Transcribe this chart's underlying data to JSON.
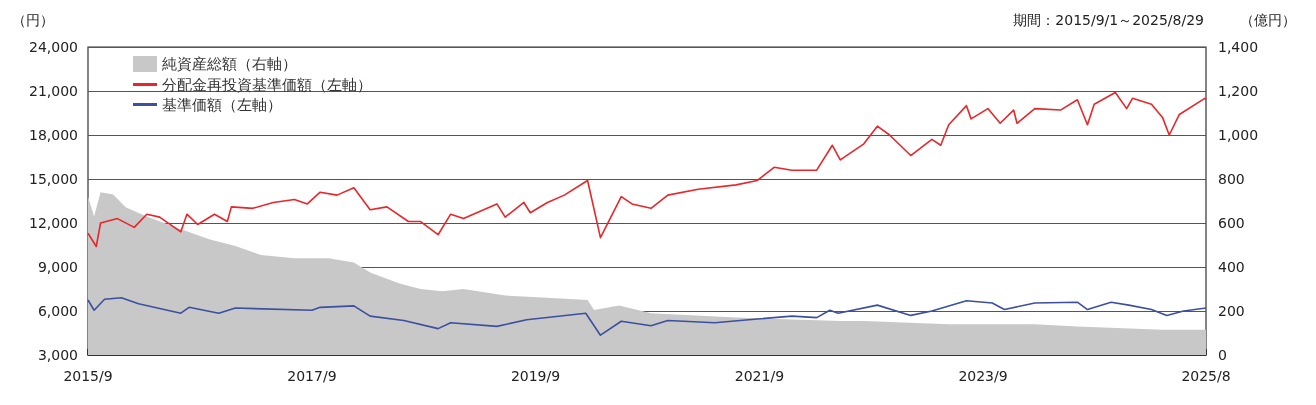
{
  "chart_data": {
    "type": "line",
    "ylabel": "（円）",
    "y2label": "（億円）",
    "annotations": [
      "期間：2015/9/1～2025/8/29"
    ],
    "xlim": [
      "2015-09-01",
      "2025-08-29"
    ],
    "xticks": [
      {
        "value": "2015-09-01",
        "label": "2015/9"
      },
      {
        "value": "2017-09-01",
        "label": "2017/9"
      },
      {
        "value": "2019-09-01",
        "label": "2019/9"
      },
      {
        "value": "2021-09-01",
        "label": "2021/9"
      },
      {
        "value": "2023-09-01",
        "label": "2023/9"
      },
      {
        "value": "2025-08-29",
        "label": "2025/8"
      }
    ],
    "ylim": [
      3000,
      24000
    ],
    "yticks": [
      {
        "value": 3000,
        "label": "3,000"
      },
      {
        "value": 6000,
        "label": "6,000"
      },
      {
        "value": 9000,
        "label": "9,000"
      },
      {
        "value": 12000,
        "label": "12,000"
      },
      {
        "value": 15000,
        "label": "15,000"
      },
      {
        "value": 18000,
        "label": "18,000"
      },
      {
        "value": 21000,
        "label": "21,000"
      },
      {
        "value": 24000,
        "label": "24,000"
      }
    ],
    "y2lim": [
      0,
      1400
    ],
    "y2ticks": [
      0,
      200,
      400,
      600,
      800,
      {
        "value": 1000,
        "label": "1,000"
      },
      {
        "value": 1200,
        "label": "1,200"
      },
      {
        "value": 1400,
        "label": "1,400"
      }
    ],
    "grid": "y",
    "legend": "top left",
    "marker": "none",
    "series": [
      {
        "name": "純資産総額（右軸）",
        "type": "area",
        "axis": "y2",
        "color": "#c8c8c8",
        "x": [
          "2015-09-01",
          "2015-09-21",
          "2015-10-12",
          "2015-11-22",
          "2016-01-03",
          "2016-03-11",
          "2016-06-15",
          "2016-10-03",
          "2016-12-25",
          "2017-03-18",
          "2017-07-06",
          "2017-10-25",
          "2018-01-16",
          "2018-03-10",
          "2018-06-14",
          "2018-08-22",
          "2018-10-31",
          "2019-01-09",
          "2019-05-25",
          "2019-10-10",
          "2020-02-18",
          "2020-03-10",
          "2020-05-31",
          "2020-09-12",
          "2021-06-17",
          "2022-05-23",
          "2022-08-08",
          "2023-05-12",
          "2024-02-17",
          "2024-07-05",
          "2025-04-09",
          "2025-08-29"
        ],
        "values": [
          720,
          630,
          740,
          730,
          670,
          630,
          580,
          525,
          495,
          455,
          440,
          440,
          420,
          375,
          325,
          300,
          290,
          300,
          270,
          260,
          250,
          205,
          225,
          190,
          170,
          155,
          155,
          140,
          140,
          130,
          115,
          115
        ]
      },
      {
        "name": "分配金再投資基準価額（左軸）",
        "color": "#e8262b",
        "x": [
          "2015-09-01",
          "2015-09-28",
          "2015-10-12",
          "2015-12-06",
          "2016-01-30",
          "2016-03-11",
          "2016-04-22",
          "2016-06-30",
          "2016-07-20",
          "2016-08-24",
          "2016-10-18",
          "2016-11-29",
          "2016-12-12",
          "2017-02-20",
          "2017-04-28",
          "2017-07-06",
          "2017-08-17",
          "2017-09-28",
          "2017-11-22",
          "2018-01-16",
          "2018-03-10",
          "2018-05-04",
          "2018-07-13",
          "2018-08-22",
          "2018-10-18",
          "2018-11-28",
          "2019-01-09",
          "2019-04-28",
          "2019-05-25",
          "2019-07-25",
          "2019-08-15",
          "2019-10-10",
          "2019-12-04",
          "2020-02-18",
          "2020-03-31",
          "2020-06-07",
          "2020-07-12",
          "2020-09-12",
          "2020-11-06",
          "2021-02-13",
          "2021-06-17",
          "2021-08-25",
          "2021-10-19",
          "2021-12-16",
          "2022-03-07",
          "2022-04-27",
          "2022-05-23",
          "2022-08-08",
          "2022-09-21",
          "2022-10-31",
          "2023-01-08",
          "2023-03-18",
          "2023-04-16",
          "2023-05-12",
          "2023-07-09",
          "2023-07-24",
          "2023-09-17",
          "2023-10-27",
          "2023-12-10",
          "2023-12-21",
          "2024-02-17",
          "2024-05-11",
          "2024-07-05",
          "2024-08-07",
          "2024-08-29",
          "2024-11-06",
          "2024-12-13",
          "2025-01-01",
          "2025-03-04",
          "2025-04-09",
          "2025-05-01",
          "2025-06-03",
          "2025-08-25",
          "2025-08-29"
        ],
        "values": [
          11300,
          10400,
          12000,
          12300,
          11700,
          12600,
          12400,
          11400,
          12600,
          11900,
          12600,
          12100,
          13100,
          13000,
          13400,
          13600,
          13300,
          14100,
          13900,
          14400,
          12900,
          13100,
          12100,
          12100,
          11200,
          12600,
          12300,
          13300,
          12400,
          13400,
          12700,
          13400,
          13900,
          14900,
          11000,
          13800,
          13300,
          13000,
          13900,
          14300,
          14600,
          14900,
          15800,
          15600,
          15600,
          17300,
          16300,
          17400,
          18600,
          18000,
          16600,
          17700,
          17300,
          18700,
          20000,
          19100,
          19800,
          18800,
          19700,
          18800,
          19800,
          19700,
          20400,
          18700,
          20100,
          20900,
          19800,
          20500,
          20100,
          19200,
          18000,
          19400,
          20500,
          20400
        ]
      },
      {
        "name": "基準価額（左軸）",
        "color": "#3d4f9e",
        "x": [
          "2015-09-01",
          "2015-09-21",
          "2015-10-25",
          "2015-12-19",
          "2016-02-13",
          "2016-06-30",
          "2016-07-27",
          "2016-11-01",
          "2016-12-25",
          "2017-09-01",
          "2017-09-28",
          "2018-01-16",
          "2018-03-10",
          "2018-06-28",
          "2018-10-18",
          "2018-11-28",
          "2019-04-28",
          "2019-08-03",
          "2020-02-12",
          "2020-03-31",
          "2020-06-07",
          "2020-09-12",
          "2020-11-06",
          "2021-04-08",
          "2021-08-25",
          "2021-12-16",
          "2022-03-07",
          "2022-04-19",
          "2022-05-16",
          "2022-09-21",
          "2023-01-08",
          "2023-03-18",
          "2023-07-09",
          "2023-10-01",
          "2023-11-10",
          "2024-02-17",
          "2024-07-05",
          "2024-08-07",
          "2024-10-23",
          "2024-12-20",
          "2025-03-04",
          "2025-04-23",
          "2025-06-17",
          "2025-08-29"
        ],
        "values": [
          6750,
          6050,
          6800,
          6900,
          6500,
          5850,
          6250,
          5850,
          6200,
          6050,
          6250,
          6350,
          5650,
          5350,
          4800,
          5200,
          4950,
          5400,
          5850,
          4350,
          5300,
          5000,
          5350,
          5200,
          5450,
          5650,
          5550,
          6050,
          5850,
          6400,
          5700,
          6000,
          6700,
          6550,
          6100,
          6550,
          6600,
          6100,
          6600,
          6400,
          6100,
          5700,
          6000,
          6200
        ]
      }
    ]
  }
}
